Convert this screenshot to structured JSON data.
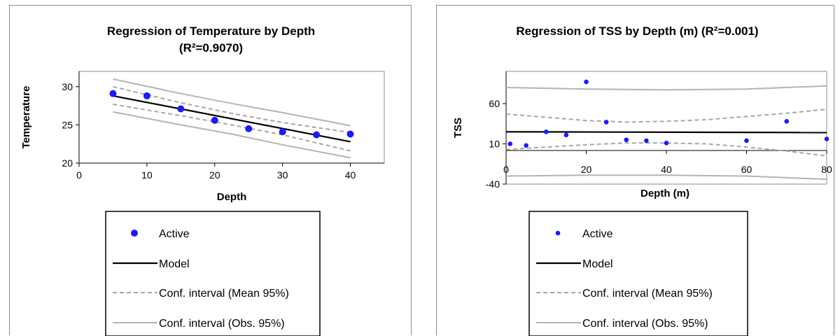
{
  "colors": {
    "point": "#1a1aff",
    "model": "#000000",
    "ci_mean": "#a6a6a6",
    "ci_obs": "#b4b4b4",
    "frame": "#8c8c8c"
  },
  "legend": {
    "active": "Active",
    "model": "Model",
    "ci_mean": "Conf. interval (Mean 95%)",
    "ci_obs": "Conf. interval (Obs. 95%)"
  },
  "chart_data": [
    {
      "type": "scatter",
      "title_lines": [
        "Regression of Temperature by Depth",
        "(R²=0.9070)"
      ],
      "xlabel": "Depth",
      "ylabel": "Temperature",
      "xlim": [
        0,
        45
      ],
      "ylim": [
        20,
        32
      ],
      "xticks": [
        0,
        10,
        20,
        30,
        40
      ],
      "yticks": [
        20,
        25,
        30
      ],
      "grid": false,
      "legend_placement": "bottom",
      "series": [
        {
          "name": "Active",
          "kind": "points",
          "x": [
            5,
            10,
            15,
            20,
            25,
            30,
            35,
            40
          ],
          "y": [
            29.1,
            28.8,
            27.1,
            25.6,
            24.5,
            24.1,
            23.7,
            23.8
          ]
        },
        {
          "name": "Model",
          "kind": "line",
          "x": [
            5,
            40
          ],
          "y": [
            28.8,
            22.8
          ]
        },
        {
          "name": "Conf. interval (Mean 95%)",
          "kind": "band",
          "x": [
            5,
            15,
            22.5,
            30,
            40
          ],
          "upper": [
            30.0,
            27.9,
            26.5,
            25.3,
            24.0
          ],
          "lower": [
            27.7,
            26.2,
            25.0,
            23.7,
            21.6
          ]
        },
        {
          "name": "Conf. interval (Obs. 95%)",
          "kind": "band",
          "x": [
            5,
            15,
            22.5,
            30,
            40
          ],
          "upper": [
            31.0,
            29.1,
            27.8,
            26.6,
            24.9
          ],
          "lower": [
            26.7,
            25.0,
            23.8,
            22.4,
            20.7
          ]
        }
      ]
    },
    {
      "type": "scatter",
      "title_lines": [
        "Regression of TSS by Depth (m) (R²=0.001)"
      ],
      "xlabel": "Depth (m)",
      "ylabel": "TSS",
      "xlim": [
        0,
        80
      ],
      "ylim": [
        -40,
        100
      ],
      "xticks": [
        0,
        20,
        40,
        60,
        80
      ],
      "yticks": [
        -40,
        10,
        60
      ],
      "grid": false,
      "legend_placement": "bottom",
      "series": [
        {
          "name": "Active",
          "kind": "points",
          "x": [
            1,
            5,
            10,
            15,
            20,
            25,
            30,
            35,
            40,
            60,
            70,
            80
          ],
          "y": [
            10,
            8,
            25,
            21,
            87,
            37,
            15,
            14,
            11,
            14,
            38,
            16
          ]
        },
        {
          "name": "Model",
          "kind": "line",
          "x": [
            0,
            80
          ],
          "y": [
            25,
            24
          ]
        },
        {
          "name": "Conf. interval (Mean 95%)",
          "kind": "band",
          "x": [
            0,
            10,
            20,
            30,
            40,
            50,
            60,
            70,
            80
          ],
          "upper": [
            47,
            43,
            39,
            37,
            38,
            40,
            44,
            48,
            53
          ],
          "lower": [
            3,
            6,
            9,
            11,
            11,
            10,
            6,
            1,
            -5
          ]
        },
        {
          "name": "Conf. interval (Obs. 95%)",
          "kind": "band",
          "x": [
            0,
            20,
            40,
            60,
            80
          ],
          "upper": [
            80,
            78,
            77,
            78,
            82
          ],
          "lower": [
            -30,
            -29,
            -29,
            -30,
            -34
          ]
        }
      ]
    }
  ]
}
